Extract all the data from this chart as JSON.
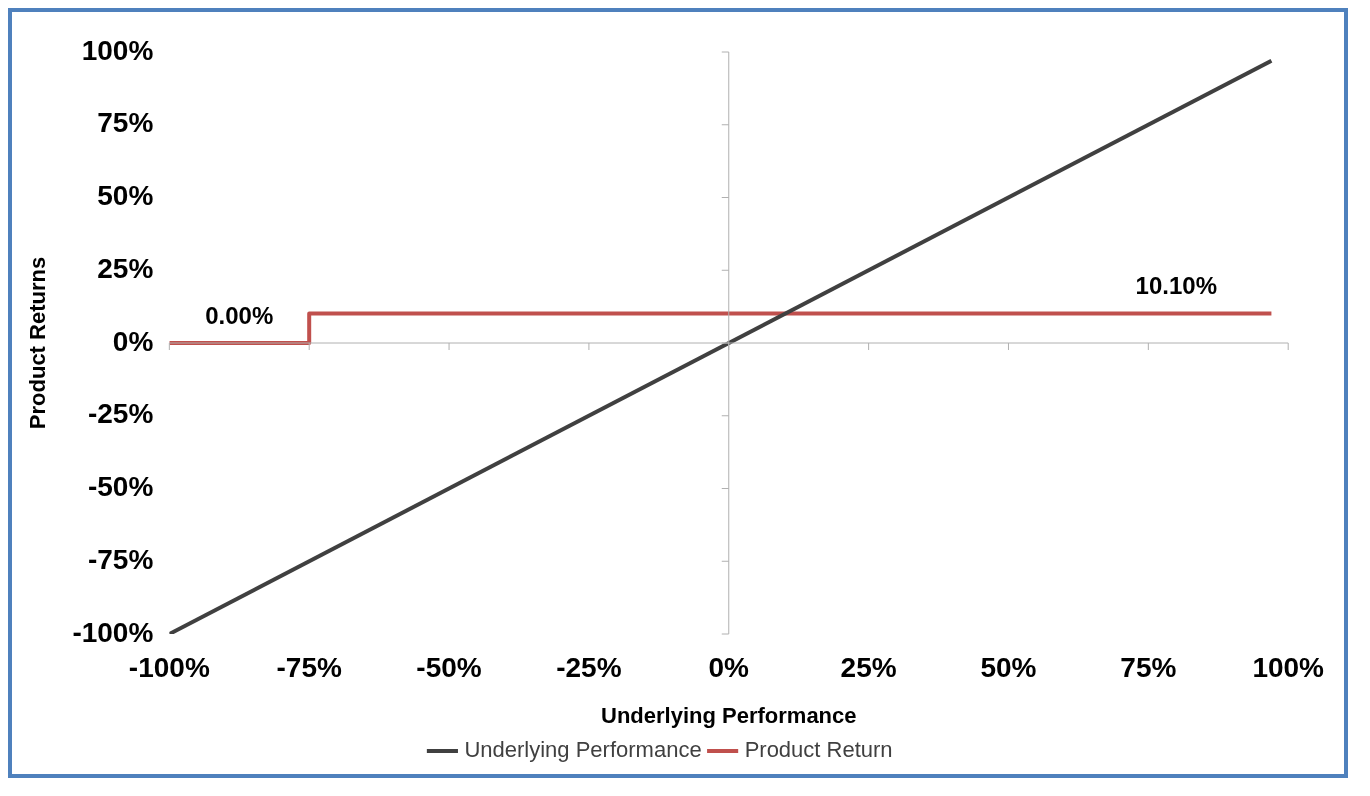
{
  "chart_data": {
    "type": "line",
    "xlabel": "Underlying Performance",
    "ylabel": "Product Returns",
    "xlim": [
      -100,
      100
    ],
    "ylim": [
      -100,
      100
    ],
    "xticks": [
      {
        "value": -100,
        "label": "-100%"
      },
      {
        "value": -75,
        "label": "-75%"
      },
      {
        "value": -50,
        "label": "-50%"
      },
      {
        "value": -25,
        "label": "-25%"
      },
      {
        "value": 0,
        "label": "0%"
      },
      {
        "value": 25,
        "label": "25%"
      },
      {
        "value": 50,
        "label": "50%"
      },
      {
        "value": 75,
        "label": "75%"
      },
      {
        "value": 100,
        "label": "100%"
      }
    ],
    "yticks": [
      {
        "value": -100,
        "label": "-100%"
      },
      {
        "value": -75,
        "label": "-75%"
      },
      {
        "value": -50,
        "label": "-50%"
      },
      {
        "value": -25,
        "label": "-25%"
      },
      {
        "value": 0,
        "label": "0%"
      },
      {
        "value": 25,
        "label": "25%"
      },
      {
        "value": 50,
        "label": "50%"
      },
      {
        "value": 75,
        "label": "75%"
      },
      {
        "value": 100,
        "label": "100%"
      }
    ],
    "series": [
      {
        "name": "Underlying Performance",
        "color": "#404040",
        "x": [
          -100,
          97
        ],
        "values": [
          -100,
          97
        ]
      },
      {
        "name": "Product Return",
        "type": "step",
        "color": "#c0504d",
        "x": [
          -100,
          -75,
          97
        ],
        "values": [
          0,
          10.1,
          10.1
        ]
      }
    ],
    "annotations": [
      {
        "text": "0.00%",
        "x": -87.5,
        "y": 0
      },
      {
        "text": "10.10%",
        "x": 80,
        "y": 10.1
      }
    ],
    "legend": "bottom",
    "marker": "none",
    "line_style": "solid"
  }
}
